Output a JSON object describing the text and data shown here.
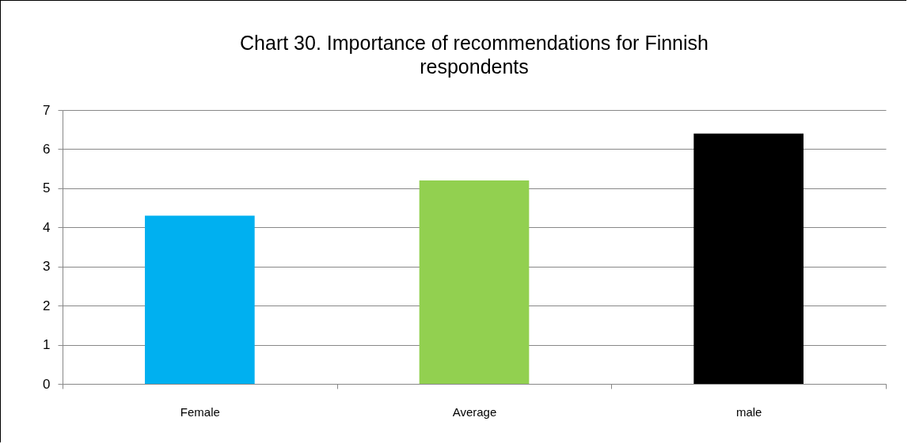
{
  "chart_data": {
    "type": "bar",
    "title": "Chart 30. Importance of recommendations for Finnish respondents",
    "categories": [
      "Female",
      "Average",
      "male"
    ],
    "values": [
      4.3,
      5.2,
      6.4
    ],
    "colors": [
      "#00b0f0",
      "#92d050",
      "#000000"
    ],
    "ylim": [
      0,
      7
    ],
    "yticks": [
      0,
      1,
      2,
      3,
      4,
      5,
      6,
      7
    ],
    "grid": "y",
    "legend": false
  }
}
